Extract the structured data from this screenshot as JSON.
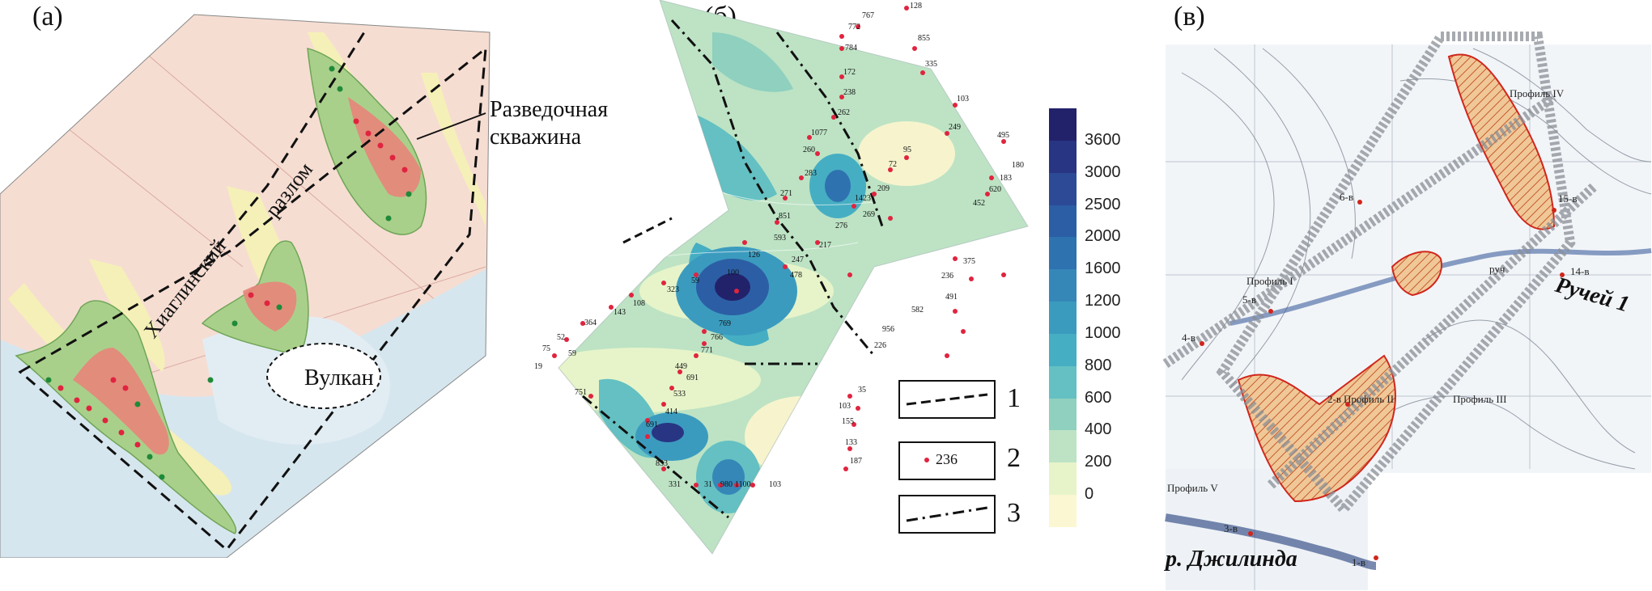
{
  "panels": {
    "a": {
      "label": "(а)",
      "well_label_line1": "Разведочная",
      "well_label_line2": "скважина",
      "fault_label_1": "Хиаглинский",
      "fault_label_2": "разлом",
      "volcano_label": "Вулкан"
    },
    "b": {
      "label": "(б)",
      "point_values": [
        "128",
        "767",
        "772",
        "784",
        "855",
        "335",
        "172",
        "238",
        "262",
        "103",
        "1077",
        "249",
        "495",
        "260",
        "95",
        "72",
        "180",
        "283",
        "209",
        "183",
        "620",
        "271",
        "1423",
        "452",
        "269",
        "276",
        "851",
        "593",
        "217",
        "247",
        "126",
        "478",
        "375",
        "100",
        "236",
        "59",
        "323",
        "108",
        "143",
        "491",
        "582",
        "364",
        "52",
        "75",
        "59",
        "19",
        "769",
        "766",
        "771",
        "449",
        "956",
        "226",
        "691",
        "533",
        "414",
        "691",
        "751",
        "35",
        "103",
        "155",
        "133",
        "187",
        "833",
        "331",
        "31",
        "980",
        "1100",
        "103",
        "236"
      ],
      "legend_1": "1",
      "legend_2": "2",
      "legend_3": "3",
      "legend_point_value": "236",
      "colorbar_ticks": [
        "3600",
        "3000",
        "2500",
        "2000",
        "1600",
        "1200",
        "1000",
        "800",
        "600",
        "400",
        "200",
        "0"
      ],
      "colorbar_colors": [
        "#22226b",
        "#283583",
        "#2c4a96",
        "#2c5ea5",
        "#2f72b0",
        "#3587b8",
        "#3b9bbf",
        "#46aec3",
        "#64c0c2",
        "#8fd0bf",
        "#bde3c4",
        "#e7f4c9",
        "#fbf7d2"
      ]
    },
    "c": {
      "label": "(в)",
      "stream_label": "Ручей 1",
      "river_label": "р. Джилинда",
      "profiles": [
        "Профиль IV",
        "Профиль I",
        "Профиль II",
        "Профиль III",
        "Профиль V"
      ],
      "wells": [
        "15-в",
        "14-в",
        "6-в",
        "5-в",
        "4-в",
        "2-в",
        "3-в",
        "1-в"
      ],
      "stream_short": "руч"
    }
  },
  "colors": {
    "pink_background": "#f5d9cf",
    "green_zone": "#a9d08a",
    "red_zone": "#e8847a",
    "yellow_zone": "#f4efb3",
    "blue_zone": "#cfe3ee",
    "dot_red": "#e0243f",
    "dot_green": "#1f8a3a"
  }
}
